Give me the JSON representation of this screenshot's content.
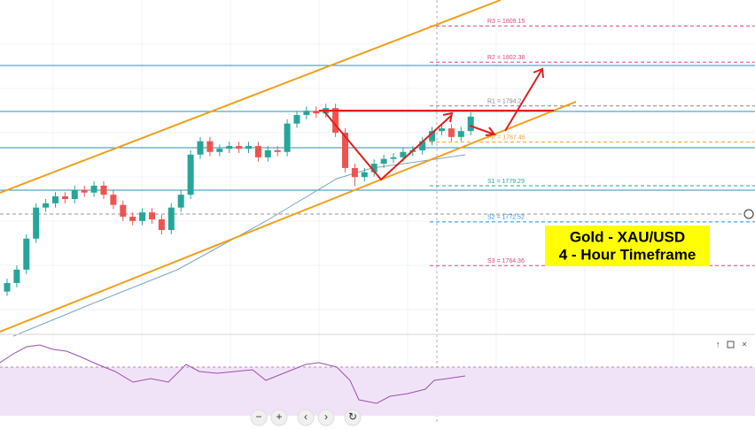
{
  "chart_data": {
    "type": "candlestick",
    "ylim": [
      1752,
      1814
    ],
    "up_color": "#26a69a",
    "down_color": "#ef5350",
    "open": [
      1759.5,
      1761.1,
      1763.6,
      1769.4,
      1775.2,
      1776.0,
      1777.3,
      1776.8,
      1778.5,
      1778.0,
      1779.3,
      1777.6,
      1775.7,
      1773.5,
      1772.7,
      1774.3,
      1773.0,
      1771.0,
      1775.2,
      1777.6,
      1785.1,
      1787.6,
      1785.6,
      1786.2,
      1786.7,
      1786.2,
      1786.7,
      1784.6,
      1785.9,
      1785.6,
      1790.9,
      1792.5,
      1793.3,
      1792.8,
      1793.8,
      1789.2,
      1782.6,
      1780.9,
      1781.8,
      1783.4,
      1784.3,
      1784.6,
      1785.6,
      1785.9,
      1787.6,
      1789.5,
      1790.0,
      1788.4,
      1789.5
    ],
    "high": [
      1761.9,
      1764.4,
      1770.2,
      1776.0,
      1776.8,
      1778.1,
      1778.1,
      1779.3,
      1779.3,
      1780.1,
      1780.1,
      1778.4,
      1776.5,
      1774.3,
      1775.1,
      1775.1,
      1773.8,
      1776.0,
      1778.4,
      1785.9,
      1788.4,
      1788.4,
      1787.0,
      1787.5,
      1787.5,
      1787.5,
      1787.5,
      1786.7,
      1786.7,
      1791.7,
      1793.3,
      1794.1,
      1794.1,
      1794.6,
      1794.6,
      1790.0,
      1783.4,
      1782.6,
      1784.2,
      1785.1,
      1785.4,
      1786.4,
      1786.7,
      1788.4,
      1790.3,
      1790.8,
      1790.8,
      1790.3,
      1793.0
    ],
    "low": [
      1758.7,
      1760.3,
      1762.8,
      1768.6,
      1774.4,
      1775.2,
      1776.0,
      1776.0,
      1777.2,
      1777.2,
      1776.8,
      1774.9,
      1772.7,
      1771.9,
      1771.9,
      1772.2,
      1770.2,
      1770.2,
      1774.4,
      1776.8,
      1784.3,
      1784.8,
      1784.8,
      1785.4,
      1785.4,
      1785.4,
      1783.8,
      1783.8,
      1784.8,
      1784.8,
      1790.1,
      1791.7,
      1792.0,
      1792.0,
      1788.4,
      1781.8,
      1779.2,
      1780.1,
      1781.0,
      1782.6,
      1783.5,
      1783.8,
      1784.8,
      1785.1,
      1786.8,
      1788.7,
      1787.6,
      1787.6,
      1788.7
    ],
    "close": [
      1761.1,
      1763.6,
      1769.4,
      1775.2,
      1776.0,
      1777.3,
      1776.8,
      1778.5,
      1778.0,
      1779.3,
      1777.6,
      1775.7,
      1773.5,
      1772.7,
      1774.3,
      1773.0,
      1771.0,
      1775.2,
      1777.6,
      1785.1,
      1787.6,
      1785.6,
      1786.2,
      1786.7,
      1786.2,
      1786.7,
      1784.6,
      1785.9,
      1785.6,
      1790.9,
      1792.5,
      1793.3,
      1792.8,
      1793.8,
      1789.2,
      1782.6,
      1780.9,
      1781.8,
      1783.4,
      1784.3,
      1784.6,
      1785.6,
      1785.9,
      1787.6,
      1789.5,
      1790.0,
      1788.4,
      1789.5,
      1792.2
    ],
    "levels": [
      {
        "label": "R3 = 1809.15",
        "value": 1809.15,
        "color": "#e0457b"
      },
      {
        "label": "R2 = 1802.38",
        "value": 1802.38,
        "color": "#e0457b"
      },
      {
        "label": "R1 = 1794.2",
        "value": 1794.2,
        "color": "#888888"
      },
      {
        "label": "PP = 1787.45",
        "value": 1787.45,
        "color": "#f0a030"
      },
      {
        "label": "S1 = 1779.29",
        "value": 1779.29,
        "color": "#26a69a"
      },
      {
        "label": "S2 = 1772.52",
        "value": 1772.52,
        "color": "#2196f3"
      },
      {
        "label": "S3 = 1764.36",
        "value": 1764.36,
        "color": "#e0457b"
      }
    ],
    "annotation": [
      "Gold - XAU/USD",
      "4 - Hour Timeframe"
    ]
  },
  "toolbar": [
    "−",
    "+",
    "‹",
    "›",
    "↻"
  ]
}
